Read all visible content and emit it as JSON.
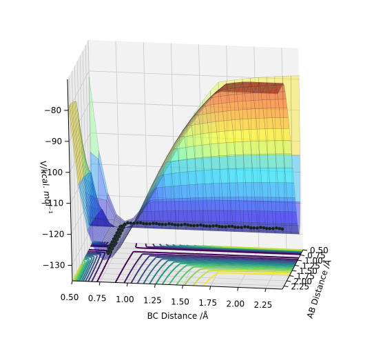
{
  "chart_data": {
    "type": "surface-3d",
    "title": "",
    "xlabel": "BC Distance /Å",
    "ylabel": "AB Distance /Å",
    "zlabel": "V/kcal. mol⁻¹",
    "x_ticks": [
      "0.50",
      "0.75",
      "1.00",
      "1.25",
      "1.50",
      "1.75",
      "2.00",
      "2.25"
    ],
    "y_ticks": [
      "0.50",
      "0.75",
      "1.00",
      "1.25",
      "1.50",
      "1.75",
      "2.00",
      "2.25"
    ],
    "z_ticks": [
      "−80",
      "−90",
      "−100",
      "−110",
      "−120",
      "−130"
    ],
    "xlim": [
      0.5,
      2.4
    ],
    "ylim": [
      0.5,
      2.4
    ],
    "zlim": [
      -135,
      -70
    ],
    "grid": true,
    "colormap_surface": "jet",
    "colormap_contours": "viridis",
    "trajectory_color": "#1a1a2e"
  }
}
